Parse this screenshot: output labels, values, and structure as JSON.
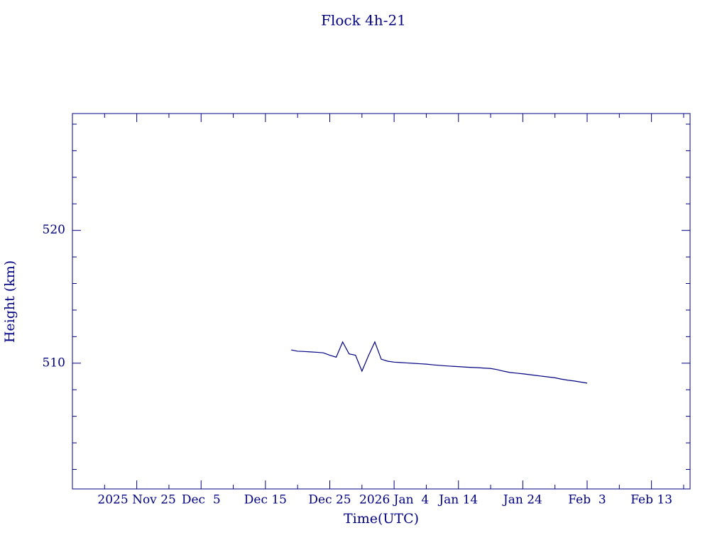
{
  "chart_data": {
    "type": "line",
    "title": "Flock 4h-21",
    "xlabel": "Time(UTC)",
    "ylabel": "Height (km)",
    "color": "#000080",
    "xlim": [
      "2025-11-15",
      "2026-02-19"
    ],
    "xticks": [
      {
        "value": "2025-11-25",
        "label": "2025 Nov 25"
      },
      {
        "value": "2025-12-05",
        "label": "Dec  5"
      },
      {
        "value": "2025-12-15",
        "label": "Dec 15"
      },
      {
        "value": "2025-12-25",
        "label": "Dec 25"
      },
      {
        "value": "2026-01-04",
        "label": "2026 Jan  4"
      },
      {
        "value": "2026-01-14",
        "label": "Jan 14"
      },
      {
        "value": "2026-01-24",
        "label": "Jan 24"
      },
      {
        "value": "2026-02-03",
        "label": "Feb  3"
      },
      {
        "value": "2026-02-13",
        "label": "Feb 13"
      }
    ],
    "xminorticks": [
      "2025-11-20",
      "2025-11-30",
      "2025-12-10",
      "2025-12-20",
      "2025-12-30",
      "2026-01-09",
      "2026-01-19",
      "2026-01-29",
      "2026-02-08",
      "2026-02-18"
    ],
    "ylim": [
      500.53,
      528.8
    ],
    "yticks": [
      510,
      520
    ],
    "yminorticks": [
      502,
      504,
      506,
      508,
      512,
      514,
      516,
      518,
      522,
      524,
      526,
      528
    ],
    "x": [
      "2025-12-19",
      "2025-12-20",
      "2025-12-21",
      "2025-12-22",
      "2025-12-23",
      "2025-12-24",
      "2025-12-25",
      "2025-12-26",
      "2025-12-27",
      "2025-12-28",
      "2025-12-29",
      "2025-12-30",
      "2025-12-31",
      "2026-01-01",
      "2026-01-02",
      "2026-01-03",
      "2026-01-04",
      "2026-01-05",
      "2026-01-06",
      "2026-01-07",
      "2026-01-08",
      "2026-01-09",
      "2026-01-10",
      "2026-01-11",
      "2026-01-12",
      "2026-01-13",
      "2026-01-14",
      "2026-01-15",
      "2026-01-16",
      "2026-01-17",
      "2026-01-18",
      "2026-01-19",
      "2026-01-20",
      "2026-01-21",
      "2026-01-22",
      "2026-01-23",
      "2026-01-24",
      "2026-01-25",
      "2026-01-26",
      "2026-01-27",
      "2026-01-28",
      "2026-01-29",
      "2026-01-30",
      "2026-01-31",
      "2026-02-01",
      "2026-02-02",
      "2026-02-03"
    ],
    "values": [
      511.0,
      510.9,
      510.88,
      510.85,
      510.82,
      510.78,
      510.6,
      510.45,
      511.6,
      510.7,
      510.6,
      509.4,
      510.55,
      511.6,
      510.3,
      510.15,
      510.08,
      510.05,
      510.02,
      509.99,
      509.96,
      509.93,
      509.88,
      509.84,
      509.8,
      509.77,
      509.74,
      509.71,
      509.68,
      509.66,
      509.63,
      509.6,
      509.52,
      509.4,
      509.3,
      509.25,
      509.2,
      509.14,
      509.08,
      509.02,
      508.96,
      508.9,
      508.8,
      508.72,
      508.66,
      508.58,
      508.5
    ]
  }
}
